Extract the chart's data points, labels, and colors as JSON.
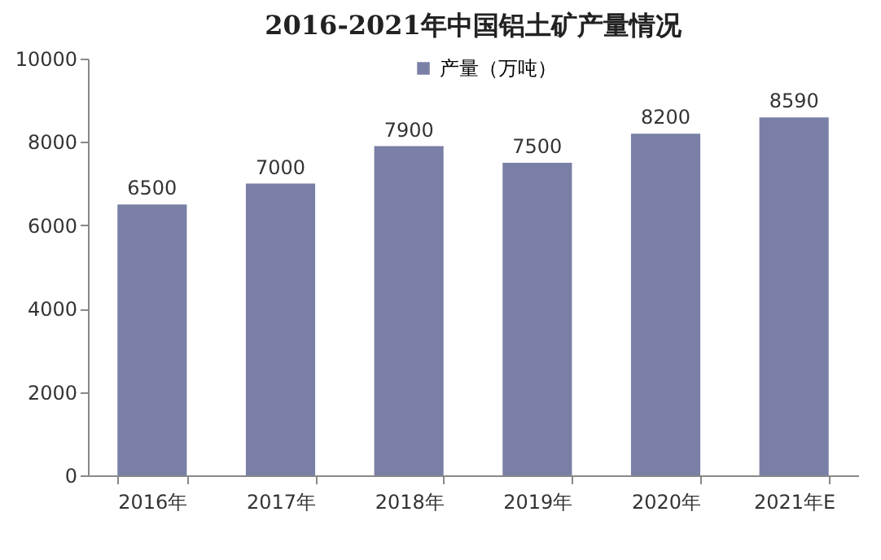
{
  "chart_data": {
    "type": "bar",
    "title": "2016-2021年中国铝土矿产量情况",
    "categories": [
      "2016年",
      "2017年",
      "2018年",
      "2019年",
      "2020年",
      "2021年E"
    ],
    "series": [
      {
        "name": "产量（万吨）",
        "color": "#7a7fa6",
        "values": [
          6500,
          7000,
          7900,
          7500,
          8200,
          8590
        ]
      }
    ],
    "ylim": [
      0,
      10000
    ],
    "yticks": [
      0,
      2000,
      4000,
      6000,
      8000,
      10000
    ],
    "grid": false,
    "legend": "top",
    "data_labels": true
  }
}
